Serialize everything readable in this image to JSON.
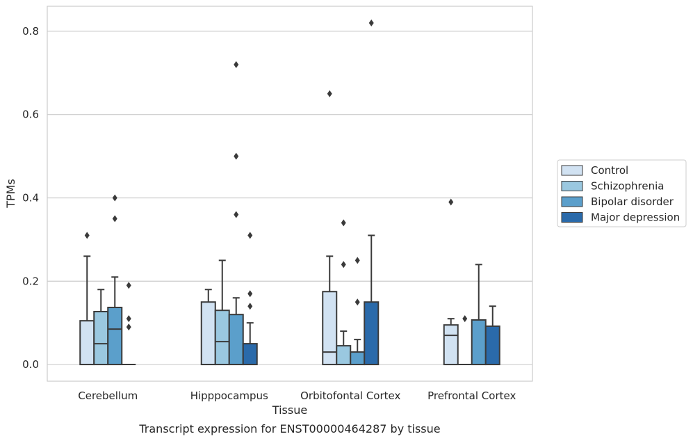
{
  "chart_data": {
    "type": "box",
    "title": "",
    "caption": "Transcript expression for ENST00000464287 by tissue",
    "xlabel": "Tissue",
    "ylabel": "TPMs",
    "ylim": [
      -0.04,
      0.86
    ],
    "yticks": [
      0.0,
      0.2,
      0.4,
      0.6,
      0.8
    ],
    "ytick_labels": [
      "0.0",
      "0.2",
      "0.4",
      "0.6",
      "0.8"
    ],
    "grid": "horizontal",
    "legend_position": "right",
    "categories": [
      "Cerebellum",
      "Hipppocampus",
      "Orbitofontal Cortex",
      "Prefrontal Cortex"
    ],
    "series": [
      {
        "name": "Control",
        "color": "#d1e2f2",
        "boxes": [
          {
            "q1": 0.0,
            "median": 0.0,
            "q3": 0.105,
            "whisker_low": 0.0,
            "whisker_high": 0.26,
            "outliers": [
              0.31
            ]
          },
          {
            "q1": 0.0,
            "median": 0.0,
            "q3": 0.15,
            "whisker_low": 0.0,
            "whisker_high": 0.18,
            "outliers": []
          },
          {
            "q1": 0.0,
            "median": 0.03,
            "q3": 0.175,
            "whisker_low": 0.0,
            "whisker_high": 0.26,
            "outliers": [
              0.65
            ]
          },
          {
            "q1": 0.0,
            "median": 0.07,
            "q3": 0.095,
            "whisker_low": 0.0,
            "whisker_high": 0.11,
            "outliers": [
              0.39
            ]
          }
        ]
      },
      {
        "name": "Schizophrenia",
        "color": "#9ac8e0",
        "boxes": [
          {
            "q1": 0.0,
            "median": 0.05,
            "q3": 0.127,
            "whisker_low": 0.0,
            "whisker_high": 0.18,
            "outliers": []
          },
          {
            "q1": 0.0,
            "median": 0.055,
            "q3": 0.13,
            "whisker_low": 0.0,
            "whisker_high": 0.25,
            "outliers": []
          },
          {
            "q1": 0.0,
            "median": 0.0,
            "q3": 0.045,
            "whisker_low": 0.0,
            "whisker_high": 0.08,
            "outliers": [
              0.24,
              0.34
            ]
          },
          {
            "q1": 0.0,
            "median": 0.0,
            "q3": 0.0,
            "whisker_low": 0.0,
            "whisker_high": 0.0,
            "outliers": [
              0.11
            ]
          }
        ]
      },
      {
        "name": "Bipolar disorder",
        "color": "#5b9fcb",
        "boxes": [
          {
            "q1": 0.0,
            "median": 0.085,
            "q3": 0.137,
            "whisker_low": 0.0,
            "whisker_high": 0.21,
            "outliers": [
              0.35,
              0.4
            ]
          },
          {
            "q1": 0.0,
            "median": 0.0,
            "q3": 0.12,
            "whisker_low": 0.0,
            "whisker_high": 0.16,
            "outliers": [
              0.36,
              0.5,
              0.72
            ]
          },
          {
            "q1": 0.0,
            "median": 0.0,
            "q3": 0.03,
            "whisker_low": 0.0,
            "whisker_high": 0.06,
            "outliers": [
              0.15,
              0.25
            ]
          },
          {
            "q1": 0.0,
            "median": 0.0,
            "q3": 0.107,
            "whisker_low": 0.0,
            "whisker_high": 0.24,
            "outliers": []
          }
        ]
      },
      {
        "name": "Major depression",
        "color": "#2a6aaa",
        "boxes": [
          {
            "q1": 0.0,
            "median": 0.0,
            "q3": 0.0,
            "whisker_low": 0.0,
            "whisker_high": 0.0,
            "outliers": [
              0.09,
              0.11,
              0.19
            ]
          },
          {
            "q1": 0.0,
            "median": 0.0,
            "q3": 0.05,
            "whisker_low": 0.0,
            "whisker_high": 0.1,
            "outliers": [
              0.14,
              0.17,
              0.31
            ]
          },
          {
            "q1": 0.0,
            "median": 0.0,
            "q3": 0.15,
            "whisker_low": 0.0,
            "whisker_high": 0.31,
            "outliers": [
              0.82
            ]
          },
          {
            "q1": 0.0,
            "median": 0.0,
            "q3": 0.092,
            "whisker_low": 0.0,
            "whisker_high": 0.14,
            "outliers": []
          }
        ]
      }
    ]
  }
}
